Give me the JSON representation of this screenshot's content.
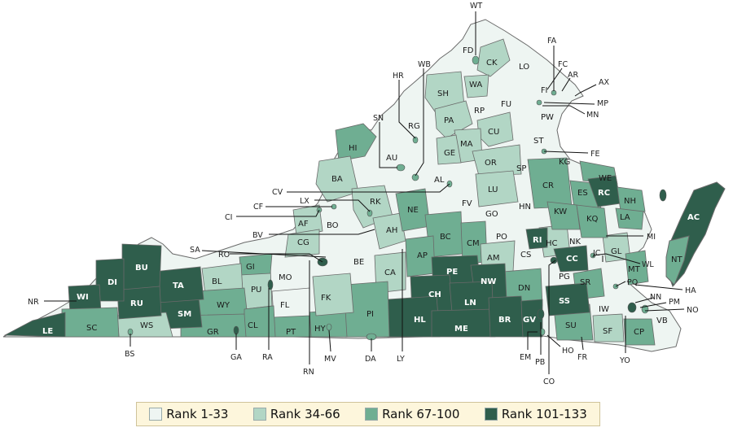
{
  "colors": {
    "rank_1_33": "#eef5f2",
    "rank_34_66": "#b2d6c5",
    "rank_67_100": "#6fae92",
    "rank_101_133": "#2f5e4c",
    "border": "#6a6a6a"
  },
  "legend": [
    {
      "label": "Rank 1-33",
      "color": "#eef5f2"
    },
    {
      "label": "Rank 34-66",
      "color": "#b2d6c5"
    },
    {
      "label": "Rank 67-100",
      "color": "#6fae92"
    },
    {
      "label": "Rank 101-133",
      "color": "#2f5e4c"
    }
  ],
  "inner_labels": [
    {
      "code": "FD",
      "rank": 1
    },
    {
      "code": "CK",
      "rank": 2
    },
    {
      "code": "LO",
      "rank": 1
    },
    {
      "code": "WA",
      "rank": 2
    },
    {
      "code": "SH",
      "rank": 2
    },
    {
      "code": "FU",
      "rank": 1
    },
    {
      "code": "RP",
      "rank": 1
    },
    {
      "code": "PA",
      "rank": 2
    },
    {
      "code": "RG",
      "rank": 1
    },
    {
      "code": "CU",
      "rank": 2
    },
    {
      "code": "PW",
      "rank": 1
    },
    {
      "code": "MA",
      "rank": 2
    },
    {
      "code": "GE",
      "rank": 2
    },
    {
      "code": "ST",
      "rank": 1
    },
    {
      "code": "HI",
      "rank": 3
    },
    {
      "code": "AU",
      "rank": 1
    },
    {
      "code": "OR",
      "rank": 2
    },
    {
      "code": "KG",
      "rank": 1
    },
    {
      "code": "WE",
      "rank": 3
    },
    {
      "code": "SP",
      "rank": 1
    },
    {
      "code": "BA",
      "rank": 2
    },
    {
      "code": "AL",
      "rank": 1
    },
    {
      "code": "CR",
      "rank": 3
    },
    {
      "code": "RC",
      "rank": 4
    },
    {
      "code": "ES",
      "rank": 3
    },
    {
      "code": "NH",
      "rank": 3
    },
    {
      "code": "LU",
      "rank": 2
    },
    {
      "code": "RK",
      "rank": 2
    },
    {
      "code": "FV",
      "rank": 1
    },
    {
      "code": "HN",
      "rank": 1
    },
    {
      "code": "KW",
      "rank": 3
    },
    {
      "code": "LA",
      "rank": 3
    },
    {
      "code": "KQ",
      "rank": 3
    },
    {
      "code": "AF",
      "rank": 2
    },
    {
      "code": "BO",
      "rank": 1
    },
    {
      "code": "NE",
      "rank": 3
    },
    {
      "code": "GO",
      "rank": 1
    },
    {
      "code": "CG",
      "rank": 2
    },
    {
      "code": "AH",
      "rank": 2
    },
    {
      "code": "BC",
      "rank": 3
    },
    {
      "code": "CM",
      "rank": 3
    },
    {
      "code": "PO",
      "rank": 1
    },
    {
      "code": "RI",
      "rank": 4
    },
    {
      "code": "HC",
      "rank": 2
    },
    {
      "code": "NK",
      "rank": 1
    },
    {
      "code": "GL",
      "rank": 2
    },
    {
      "code": "MT",
      "rank": 3
    },
    {
      "code": "BU",
      "rank": 4
    },
    {
      "code": "GI",
      "rank": 3
    },
    {
      "code": "BE",
      "rank": 1
    },
    {
      "code": "AP",
      "rank": 3
    },
    {
      "code": "CS",
      "rank": 1
    },
    {
      "code": "CC",
      "rank": 4
    },
    {
      "code": "AM",
      "rank": 2
    },
    {
      "code": "DI",
      "rank": 4
    },
    {
      "code": "TA",
      "rank": 4
    },
    {
      "code": "BL",
      "rank": 2
    },
    {
      "code": "MO",
      "rank": 1
    },
    {
      "code": "CA",
      "rank": 2
    },
    {
      "code": "PE",
      "rank": 4
    },
    {
      "code": "NW",
      "rank": 4
    },
    {
      "code": "DN",
      "rank": 3
    },
    {
      "code": "PG",
      "rank": 1
    },
    {
      "code": "SR",
      "rank": 3
    },
    {
      "code": "WI",
      "rank": 4
    },
    {
      "code": "PU",
      "rank": 2
    },
    {
      "code": "CH",
      "rank": 4
    },
    {
      "code": "LN",
      "rank": 4
    },
    {
      "code": "RU",
      "rank": 4
    },
    {
      "code": "SM",
      "rank": 4
    },
    {
      "code": "WY",
      "rank": 3
    },
    {
      "code": "FL",
      "rank": 1
    },
    {
      "code": "FK",
      "rank": 2
    },
    {
      "code": "HL",
      "rank": 4
    },
    {
      "code": "BR",
      "rank": 4
    },
    {
      "code": "GV",
      "rank": 4
    },
    {
      "code": "SS",
      "rank": 4
    },
    {
      "code": "IW",
      "rank": 1
    },
    {
      "code": "SC",
      "rank": 3
    },
    {
      "code": "WS",
      "rank": 2
    },
    {
      "code": "CL",
      "rank": 3
    },
    {
      "code": "PT",
      "rank": 3
    },
    {
      "code": "HY",
      "rank": 3
    },
    {
      "code": "PI",
      "rank": 3
    },
    {
      "code": "ME",
      "rank": 4
    },
    {
      "code": "SU",
      "rank": 3
    },
    {
      "code": "SF",
      "rank": 2
    },
    {
      "code": "CP",
      "rank": 3
    },
    {
      "code": "VB",
      "rank": 1
    },
    {
      "code": "LE",
      "rank": 4
    },
    {
      "code": "GR",
      "rank": 3
    },
    {
      "code": "AC",
      "rank": 4
    },
    {
      "code": "NT",
      "rank": 3
    }
  ],
  "callouts": [
    "WT",
    "FA",
    "FC",
    "AR",
    "AX",
    "MP",
    "MN",
    "FI",
    "HR",
    "WB",
    "SN",
    "FE",
    "CV",
    "LX",
    "CF",
    "CI",
    "MI",
    "BV",
    "SA",
    "RO",
    "WL",
    "JC",
    "PQ",
    "HA",
    "NN",
    "PM",
    "NO",
    "NR",
    "BS",
    "GA",
    "RA",
    "RN",
    "MV",
    "DA",
    "LY",
    "EM",
    "PB",
    "CO",
    "HO",
    "FR",
    "YO"
  ]
}
